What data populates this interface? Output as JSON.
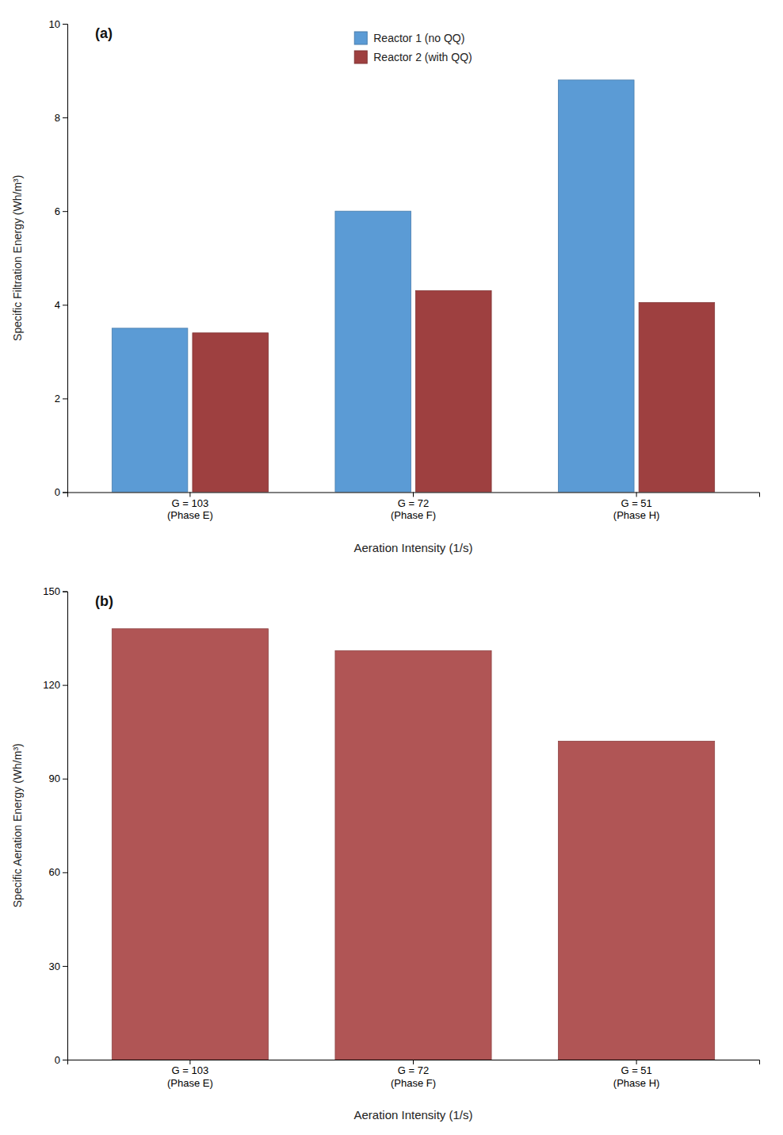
{
  "chart_data": [
    {
      "type": "bar",
      "title": "(a)",
      "categories": [
        "G = 103\n(Phase E)",
        "G = 72\n(Phase F)",
        "G = 51\n(Phase H)"
      ],
      "series": [
        {
          "name": "Reactor 1 (no QQ)",
          "color": "#5b9bd5",
          "values": [
            3.5,
            6.0,
            8.8
          ]
        },
        {
          "name": "Reactor 2 (with QQ)",
          "color": "#9e4040",
          "values": [
            3.4,
            4.3,
            4.05
          ]
        }
      ],
      "x_label": "Aeration Intensity (1/s)",
      "y_label": "Specific Filtration Energy (Wh/m³)",
      "ylim": [
        0,
        10
      ],
      "yticks": [
        0,
        2,
        4,
        6,
        8,
        10
      ],
      "legend": "top",
      "grid": false
    },
    {
      "type": "bar",
      "title": "(b)",
      "categories": [
        "G = 103\n(Phase E)",
        "G = 72\n(Phase F)",
        "G = 51\n(Phase H)"
      ],
      "values": [
        138,
        131,
        102
      ],
      "color": "#b05555",
      "x_label": "Aeration Intensity (1/s)",
      "y_label": "Specific Aeration Energy (Wh/m³)",
      "ylim": [
        0,
        150
      ],
      "yticks": [
        0,
        30,
        60,
        90,
        120,
        150
      ],
      "grid": false
    }
  ]
}
